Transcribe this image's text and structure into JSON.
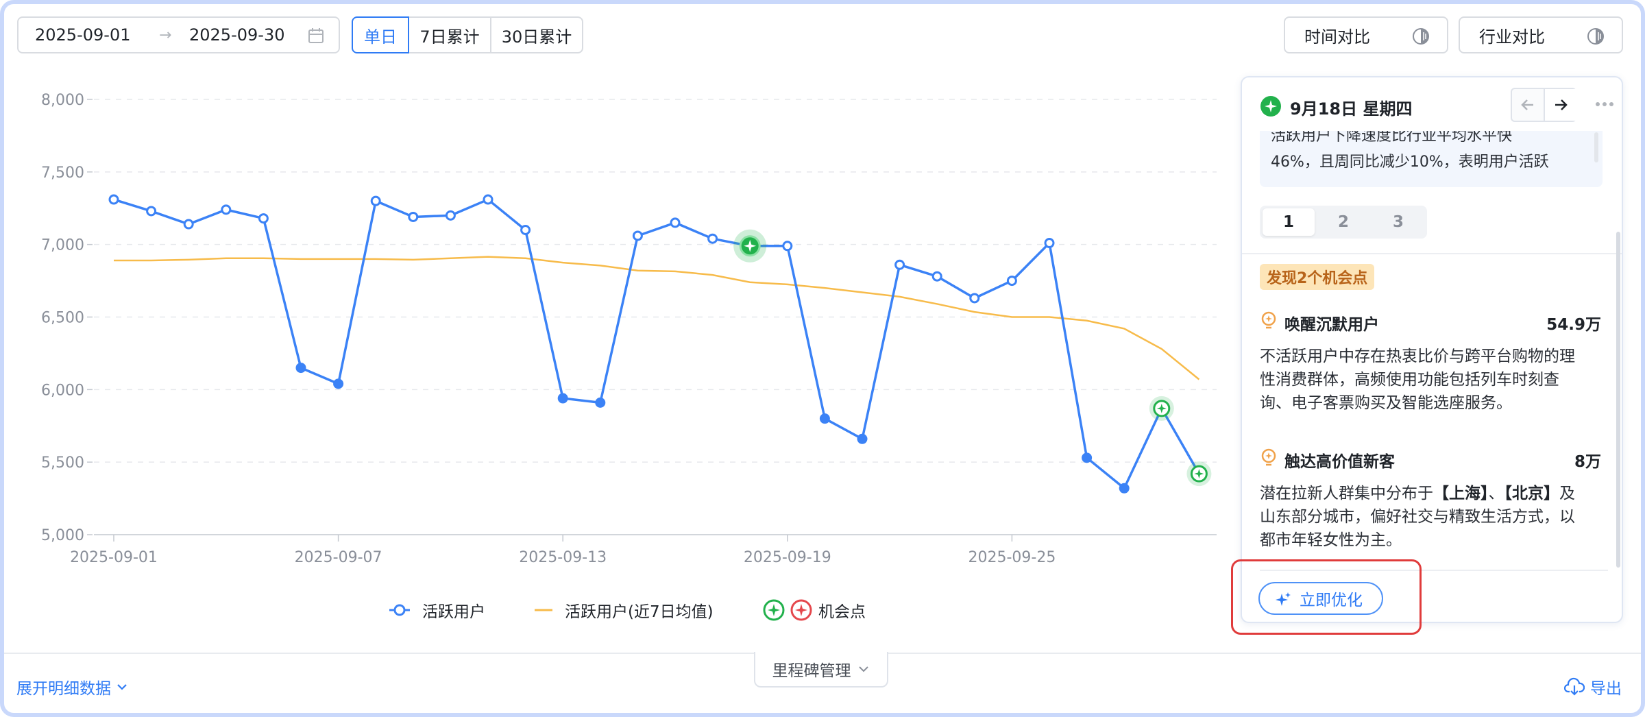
{
  "toolbar": {
    "date_start": "2025-09-01",
    "date_end": "2025-09-30",
    "range_separator": "→",
    "calendar_icon": "calendar-icon",
    "granularity": [
      "单日",
      "7日累计",
      "30日累计"
    ],
    "granularity_selected": "单日",
    "time_compare_label": "时间对比",
    "industry_compare_label": "行业对比",
    "compare_icon": "half-circle-toggle-icon"
  },
  "chart_data": {
    "type": "line",
    "title": "",
    "xlabel": "",
    "ylabel": "",
    "ylim": [
      5000,
      8000
    ],
    "yticks": [
      "8,000",
      "7,500",
      "7,000",
      "6,500",
      "6,000",
      "5,500",
      "5,000"
    ],
    "xticks": [
      "2025-09-01",
      "2025-09-07",
      "2025-09-13",
      "2025-09-19",
      "2025-09-25"
    ],
    "x": [
      "2025-09-01",
      "2025-09-02",
      "2025-09-03",
      "2025-09-04",
      "2025-09-05",
      "2025-09-06",
      "2025-09-07",
      "2025-09-08",
      "2025-09-09",
      "2025-09-10",
      "2025-09-11",
      "2025-09-12",
      "2025-09-13",
      "2025-09-14",
      "2025-09-15",
      "2025-09-16",
      "2025-09-17",
      "2025-09-18",
      "2025-09-19",
      "2025-09-20",
      "2025-09-21",
      "2025-09-22",
      "2025-09-23",
      "2025-09-24",
      "2025-09-25",
      "2025-09-26",
      "2025-09-27",
      "2025-09-28",
      "2025-09-29",
      "2025-09-30"
    ],
    "grid": true,
    "legend_position": "bottom",
    "series": [
      {
        "name": "活跃用户",
        "color": "#3b82f6",
        "values": [
          7310,
          7230,
          7140,
          7240,
          7180,
          6150,
          6040,
          7300,
          7190,
          7200,
          7310,
          7100,
          5940,
          5910,
          7060,
          7150,
          7040,
          6990,
          6990,
          5800,
          5660,
          6860,
          6780,
          6630,
          6750,
          7010,
          5530,
          5320,
          5870,
          5420
        ]
      },
      {
        "name": "活跃用户(近7日均值)",
        "color": "#f7bb4a",
        "values": [
          6890,
          6890,
          6895,
          6905,
          6905,
          6900,
          6900,
          6900,
          6895,
          6905,
          6915,
          6905,
          6875,
          6855,
          6820,
          6815,
          6790,
          6740,
          6725,
          6700,
          6670,
          6640,
          6590,
          6535,
          6500,
          6500,
          6475,
          6420,
          6280,
          6070
        ]
      }
    ],
    "filled_points": [
      "2025-09-06",
      "2025-09-07",
      "2025-09-13",
      "2025-09-14",
      "2025-09-20",
      "2025-09-21",
      "2025-09-27",
      "2025-09-28"
    ],
    "opportunity_points": [
      {
        "x": "2025-09-18",
        "selected": true
      },
      {
        "x": "2025-09-29",
        "selected": false
      },
      {
        "x": "2025-09-30",
        "selected": false
      }
    ],
    "legend": [
      "活跃用户",
      "活跃用户(近7日均值)",
      "机会点"
    ],
    "opportunity_legend_colors": [
      "#22b14c",
      "#e5484d"
    ]
  },
  "panel": {
    "date": "9月18日 星期四",
    "summary_line1": "活跃用户下降速度比行业平均水平快",
    "summary_line2": "46%，且周同比减少10%，表明用户活跃",
    "pages": [
      "1",
      "2",
      "3"
    ],
    "active_page": "1",
    "found_badge": "发现2个机会点",
    "opportunities": [
      {
        "title": "唤醒沉默用户",
        "value": "54.9万",
        "desc": [
          "不活跃用户中存在热衷比价与跨平台购物的理",
          "性消费群体，高频使用功能包括列车时刻查",
          "询、电子客票购买及智能选座服务。"
        ]
      },
      {
        "title": "触达高价值新客",
        "value": "8万",
        "desc_line1_a": "潜在拉新人群集中分布于",
        "desc_line1_b": "【上海】",
        "desc_line1_c": "、",
        "desc_line1_d": "【北京】",
        "desc_line1_e": "及",
        "desc_line2": "山东部分城市，偏好社交与精致生活方式，以",
        "desc_line3": "都市年轻女性为主。"
      }
    ],
    "optimize_label": "立即优化"
  },
  "footer": {
    "expand_label": "展开明细数据",
    "milestone_label": "里程碑管理",
    "export_label": "导出"
  }
}
